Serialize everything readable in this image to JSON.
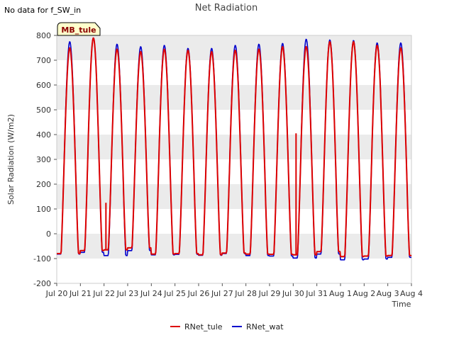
{
  "chart_data": {
    "type": "line",
    "title": "Net Radiation",
    "xlabel": "Time",
    "ylabel": "Solar Radiation (W/m2)",
    "note": "No data for f_SW_in",
    "badge": "MB_tule",
    "ylim": [
      -200,
      800
    ],
    "xlim": [
      0,
      15
    ],
    "y_ticks": [
      -200,
      -100,
      0,
      100,
      200,
      300,
      400,
      500,
      600,
      700,
      800
    ],
    "x_tick_labels": [
      "Jul 20",
      "Jul 21",
      "Jul 22",
      "Jul 23",
      "Jul 24",
      "Jul 25",
      "Jul 26",
      "Jul 27",
      "Jul 28",
      "Jul 29",
      "Jul 30",
      "Jul 31",
      "Aug 1",
      "Aug 2",
      "Aug 3",
      "Aug 4"
    ],
    "grid": "horizontal bands",
    "legend_position": "bottom-center",
    "colors": {
      "RNet_tule": "#dd0000",
      "RNet_wat": "#0000cc",
      "band": "#ebebeb",
      "badge_fill": "#ffffcc"
    },
    "series": [
      {
        "name": "RNet_tule",
        "days": [
          {
            "night": -80,
            "peak": 750
          },
          {
            "night": -68,
            "peak": 790
          },
          {
            "night": -65,
            "peak": 745
          },
          {
            "night": -57,
            "peak": 735
          },
          {
            "night": -82,
            "peak": 745
          },
          {
            "night": -80,
            "peak": 740
          },
          {
            "night": -85,
            "peak": 735
          },
          {
            "night": -78,
            "peak": 740
          },
          {
            "night": -82,
            "peak": 745
          },
          {
            "night": -83,
            "peak": 755
          },
          {
            "night": -85,
            "peak": 755
          },
          {
            "night": -72,
            "peak": 775
          },
          {
            "night": -92,
            "peak": 775
          },
          {
            "night": -90,
            "peak": 760
          },
          {
            "night": -88,
            "peak": 750
          }
        ],
        "spikes": [
          {
            "x": 2.08,
            "y": 125
          },
          {
            "x": 10.12,
            "y": 405
          }
        ]
      },
      {
        "name": "RNet_wat",
        "days": [
          {
            "night": -82,
            "peak": 775
          },
          {
            "night": -75,
            "peak": 790
          },
          {
            "night": -88,
            "peak": 765
          },
          {
            "night": -68,
            "peak": 755
          },
          {
            "night": -85,
            "peak": 760
          },
          {
            "night": -83,
            "peak": 748
          },
          {
            "night": -87,
            "peak": 748
          },
          {
            "night": -80,
            "peak": 760
          },
          {
            "night": -88,
            "peak": 765
          },
          {
            "night": -90,
            "peak": 768
          },
          {
            "night": -98,
            "peak": 785
          },
          {
            "night": -82,
            "peak": 782
          },
          {
            "night": -105,
            "peak": 780
          },
          {
            "night": -102,
            "peak": 770
          },
          {
            "night": -95,
            "peak": 770
          }
        ],
        "spikes": []
      }
    ]
  }
}
